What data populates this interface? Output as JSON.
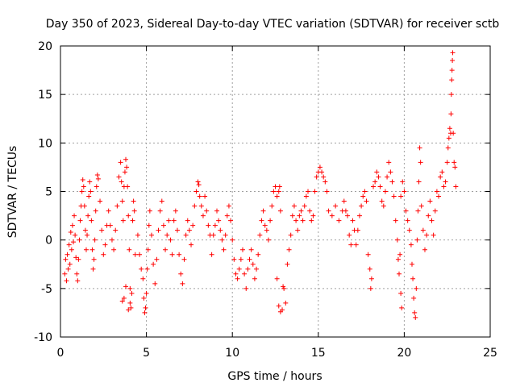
{
  "chart_data": {
    "type": "scatter",
    "title": "Day 350 of 2023, Sidereal Day-to-day VTEC variation (SDTVAR) for receiver sctb",
    "xlabel": "GPS time / hours",
    "ylabel": "SDTVAR / TECUs",
    "xlim": [
      0,
      25
    ],
    "ylim": [
      -10,
      20
    ],
    "xticks": [
      0,
      5,
      10,
      15,
      20,
      25
    ],
    "yticks": [
      -10,
      -5,
      0,
      5,
      10,
      15,
      20
    ],
    "grid": true,
    "marker": "+",
    "color": "#ff0000",
    "series": [
      {
        "name": "SDTVAR",
        "points": [
          [
            0.25,
            -3.5
          ],
          [
            0.3,
            -2.0
          ],
          [
            0.35,
            -4.2
          ],
          [
            0.4,
            -1.5
          ],
          [
            0.45,
            -3.0
          ],
          [
            0.5,
            -0.5
          ],
          [
            0.55,
            -2.5
          ],
          [
            0.6,
            0.8
          ],
          [
            0.65,
            -1.0
          ],
          [
            0.7,
            1.5
          ],
          [
            0.75,
            -0.2
          ],
          [
            0.8,
            2.5
          ],
          [
            0.85,
            0.5
          ],
          [
            0.9,
            -1.8
          ],
          [
            0.95,
            -3.5
          ],
          [
            1.0,
            -4.2
          ],
          [
            1.05,
            -2.0
          ],
          [
            1.1,
            0.0
          ],
          [
            1.15,
            2.0
          ],
          [
            1.2,
            3.5
          ],
          [
            1.25,
            5.0
          ],
          [
            1.3,
            6.2
          ],
          [
            1.35,
            5.5
          ],
          [
            1.4,
            3.5
          ],
          [
            1.45,
            1.0
          ],
          [
            1.5,
            -1.0
          ],
          [
            1.55,
            0.5
          ],
          [
            1.6,
            2.5
          ],
          [
            1.65,
            4.5
          ],
          [
            1.7,
            6.0
          ],
          [
            1.75,
            5.0
          ],
          [
            1.8,
            2.0
          ],
          [
            1.85,
            -1.0
          ],
          [
            1.9,
            -3.0
          ],
          [
            1.95,
            -2.0
          ],
          [
            2.0,
            0.0
          ],
          [
            2.05,
            3.0
          ],
          [
            2.1,
            5.5
          ],
          [
            2.15,
            6.7
          ],
          [
            2.2,
            6.3
          ],
          [
            2.3,
            4.0
          ],
          [
            2.4,
            1.0
          ],
          [
            2.5,
            -1.5
          ],
          [
            2.6,
            -0.5
          ],
          [
            2.7,
            1.5
          ],
          [
            2.8,
            3.0
          ],
          [
            2.9,
            1.5
          ],
          [
            3.0,
            0.0
          ],
          [
            3.1,
            -1.0
          ],
          [
            3.2,
            1.0
          ],
          [
            3.3,
            3.5
          ],
          [
            3.4,
            6.5
          ],
          [
            3.5,
            8.0
          ],
          [
            3.55,
            6.0
          ],
          [
            3.6,
            4.0
          ],
          [
            3.65,
            2.0
          ],
          [
            3.7,
            5.5
          ],
          [
            3.75,
            7.0
          ],
          [
            3.8,
            8.3
          ],
          [
            3.85,
            7.5
          ],
          [
            3.9,
            5.5
          ],
          [
            3.95,
            2.5
          ],
          [
            4.0,
            -1.0
          ],
          [
            4.05,
            -6.5
          ],
          [
            4.1,
            -7.0
          ],
          [
            4.15,
            -5.5
          ],
          [
            4.2,
            2.0
          ],
          [
            4.25,
            4.0
          ],
          [
            4.3,
            3.0
          ],
          [
            4.35,
            -1.5
          ],
          [
            3.6,
            -6.3
          ],
          [
            3.7,
            -6.0
          ],
          [
            3.8,
            -4.8
          ],
          [
            3.95,
            -7.2
          ],
          [
            4.05,
            -5.0
          ],
          [
            4.5,
            0.5
          ],
          [
            4.6,
            -1.5
          ],
          [
            4.7,
            -3.0
          ],
          [
            4.8,
            -4.0
          ],
          [
            4.85,
            -6.0
          ],
          [
            4.9,
            -7.5
          ],
          [
            4.95,
            -7.0
          ],
          [
            5.0,
            -5.5
          ],
          [
            5.05,
            -3.0
          ],
          [
            5.1,
            -1.0
          ],
          [
            5.15,
            1.5
          ],
          [
            5.2,
            3.0
          ],
          [
            5.3,
            0.5
          ],
          [
            5.4,
            -2.5
          ],
          [
            5.5,
            -4.5
          ],
          [
            5.6,
            -2.0
          ],
          [
            5.7,
            1.0
          ],
          [
            5.8,
            3.0
          ],
          [
            5.9,
            4.0
          ],
          [
            6.0,
            1.5
          ],
          [
            6.1,
            -1.0
          ],
          [
            6.2,
            0.5
          ],
          [
            6.3,
            2.0
          ],
          [
            6.4,
            0.0
          ],
          [
            6.5,
            -1.5
          ],
          [
            6.6,
            2.0
          ],
          [
            6.7,
            3.0
          ],
          [
            6.8,
            1.0
          ],
          [
            6.9,
            -1.5
          ],
          [
            7.0,
            -3.5
          ],
          [
            7.1,
            -4.5
          ],
          [
            7.2,
            -2.0
          ],
          [
            7.3,
            0.5
          ],
          [
            7.4,
            2.0
          ],
          [
            7.5,
            1.0
          ],
          [
            7.6,
            -0.5
          ],
          [
            7.7,
            1.5
          ],
          [
            7.8,
            3.5
          ],
          [
            7.9,
            5.0
          ],
          [
            8.0,
            6.0
          ],
          [
            8.05,
            5.7
          ],
          [
            8.1,
            4.5
          ],
          [
            8.2,
            3.5
          ],
          [
            8.3,
            2.5
          ],
          [
            8.4,
            4.5
          ],
          [
            8.5,
            3.0
          ],
          [
            8.6,
            1.5
          ],
          [
            8.7,
            0.5
          ],
          [
            8.8,
            -1.5
          ],
          [
            8.9,
            0.5
          ],
          [
            9.0,
            1.5
          ],
          [
            9.1,
            3.0
          ],
          [
            9.2,
            2.0
          ],
          [
            9.3,
            1.0
          ],
          [
            9.4,
            0.0
          ],
          [
            9.5,
            -1.0
          ],
          [
            9.6,
            0.5
          ],
          [
            9.7,
            2.5
          ],
          [
            9.8,
            3.5
          ],
          [
            9.9,
            2.0
          ],
          [
            10.0,
            0.0
          ],
          [
            10.1,
            -2.0
          ],
          [
            10.2,
            -3.5
          ],
          [
            10.3,
            -4.0
          ],
          [
            10.4,
            -3.0
          ],
          [
            10.5,
            -2.0
          ],
          [
            10.6,
            -1.0
          ],
          [
            10.7,
            -3.5
          ],
          [
            10.8,
            -5.0
          ],
          [
            10.9,
            -3.0
          ],
          [
            11.0,
            -2.0
          ],
          [
            11.1,
            -1.0
          ],
          [
            11.2,
            -2.5
          ],
          [
            11.3,
            -4.0
          ],
          [
            11.4,
            -3.0
          ],
          [
            11.5,
            -1.5
          ],
          [
            11.6,
            0.5
          ],
          [
            11.7,
            2.0
          ],
          [
            11.8,
            3.0
          ],
          [
            11.9,
            1.5
          ],
          [
            12.0,
            1.0
          ],
          [
            12.1,
            0.0
          ],
          [
            12.2,
            2.0
          ],
          [
            12.3,
            3.5
          ],
          [
            12.4,
            5.0
          ],
          [
            12.5,
            5.5
          ],
          [
            12.6,
            4.5
          ],
          [
            12.7,
            5.0
          ],
          [
            12.75,
            5.5
          ],
          [
            12.8,
            3.0
          ],
          [
            12.6,
            -4.0
          ],
          [
            12.7,
            -6.8
          ],
          [
            12.8,
            -7.4
          ],
          [
            12.9,
            -7.2
          ],
          [
            12.95,
            -4.8
          ],
          [
            13.0,
            -5.0
          ],
          [
            13.1,
            -6.5
          ],
          [
            13.2,
            -2.5
          ],
          [
            13.3,
            -1.0
          ],
          [
            13.4,
            0.5
          ],
          [
            13.5,
            2.5
          ],
          [
            13.6,
            3.5
          ],
          [
            13.7,
            2.0
          ],
          [
            13.8,
            1.0
          ],
          [
            13.9,
            2.5
          ],
          [
            14.0,
            3.0
          ],
          [
            14.1,
            2.0
          ],
          [
            14.2,
            3.5
          ],
          [
            14.3,
            4.5
          ],
          [
            14.4,
            5.0
          ],
          [
            14.5,
            3.0
          ],
          [
            14.6,
            2.0
          ],
          [
            14.7,
            2.5
          ],
          [
            14.8,
            5.0
          ],
          [
            14.9,
            6.5
          ],
          [
            15.0,
            7.0
          ],
          [
            15.1,
            7.5
          ],
          [
            15.2,
            7.0
          ],
          [
            15.3,
            6.5
          ],
          [
            15.4,
            6.0
          ],
          [
            15.5,
            5.0
          ],
          [
            15.6,
            3.0
          ],
          [
            15.8,
            2.5
          ],
          [
            16.0,
            3.5
          ],
          [
            16.2,
            2.0
          ],
          [
            16.4,
            3.0
          ],
          [
            16.5,
            4.0
          ],
          [
            16.6,
            3.0
          ],
          [
            16.7,
            2.5
          ],
          [
            16.8,
            0.5
          ],
          [
            16.9,
            -0.5
          ],
          [
            17.0,
            2.0
          ],
          [
            17.1,
            1.0
          ],
          [
            17.2,
            -0.5
          ],
          [
            17.3,
            1.0
          ],
          [
            17.4,
            2.5
          ],
          [
            17.5,
            3.5
          ],
          [
            17.6,
            4.5
          ],
          [
            17.7,
            5.0
          ],
          [
            17.8,
            4.0
          ],
          [
            17.9,
            -1.5
          ],
          [
            18.0,
            -3.0
          ],
          [
            18.05,
            -5.0
          ],
          [
            18.1,
            -4.0
          ],
          [
            18.2,
            5.5
          ],
          [
            18.3,
            6.0
          ],
          [
            18.4,
            7.0
          ],
          [
            18.5,
            6.5
          ],
          [
            18.6,
            5.5
          ],
          [
            18.7,
            4.0
          ],
          [
            18.8,
            3.5
          ],
          [
            18.9,
            5.0
          ],
          [
            19.0,
            6.5
          ],
          [
            19.1,
            8.0
          ],
          [
            19.2,
            7.0
          ],
          [
            19.3,
            6.0
          ],
          [
            19.4,
            4.5
          ],
          [
            19.5,
            2.0
          ],
          [
            19.6,
            0.0
          ],
          [
            19.65,
            -2.0
          ],
          [
            19.7,
            -3.5
          ],
          [
            19.75,
            -1.5
          ],
          [
            19.8,
            4.5
          ],
          [
            19.9,
            6.0
          ],
          [
            20.0,
            5.0
          ],
          [
            19.8,
            -5.5
          ],
          [
            19.85,
            -7.0
          ],
          [
            20.1,
            3.0
          ],
          [
            20.2,
            2.0
          ],
          [
            20.3,
            1.0
          ],
          [
            20.4,
            -0.5
          ],
          [
            20.45,
            -2.5
          ],
          [
            20.5,
            -4.0
          ],
          [
            20.55,
            -6.0
          ],
          [
            20.6,
            -7.5
          ],
          [
            20.65,
            -8.0
          ],
          [
            20.7,
            -5.0
          ],
          [
            20.75,
            0.0
          ],
          [
            20.8,
            3.0
          ],
          [
            20.85,
            6.0
          ],
          [
            20.9,
            9.5
          ],
          [
            20.95,
            8.0
          ],
          [
            21.0,
            3.5
          ],
          [
            21.1,
            1.0
          ],
          [
            21.2,
            -1.0
          ],
          [
            21.3,
            0.5
          ],
          [
            21.4,
            2.5
          ],
          [
            21.5,
            4.0
          ],
          [
            21.6,
            2.0
          ],
          [
            21.7,
            0.5
          ],
          [
            21.8,
            3.0
          ],
          [
            21.9,
            5.0
          ],
          [
            22.0,
            4.5
          ],
          [
            22.1,
            6.5
          ],
          [
            22.2,
            7.0
          ],
          [
            22.3,
            5.5
          ],
          [
            22.4,
            6.0
          ],
          [
            22.5,
            8.0
          ],
          [
            22.55,
            9.5
          ],
          [
            22.6,
            10.5
          ],
          [
            22.65,
            11.5
          ],
          [
            22.7,
            11.0
          ],
          [
            22.72,
            13.0
          ],
          [
            22.74,
            15.0
          ],
          [
            22.76,
            16.5
          ],
          [
            22.78,
            17.5
          ],
          [
            22.8,
            18.5
          ],
          [
            22.82,
            19.3
          ],
          [
            22.85,
            11.0
          ],
          [
            22.9,
            8.0
          ],
          [
            22.95,
            7.5
          ],
          [
            23.0,
            5.5
          ]
        ]
      }
    ]
  }
}
